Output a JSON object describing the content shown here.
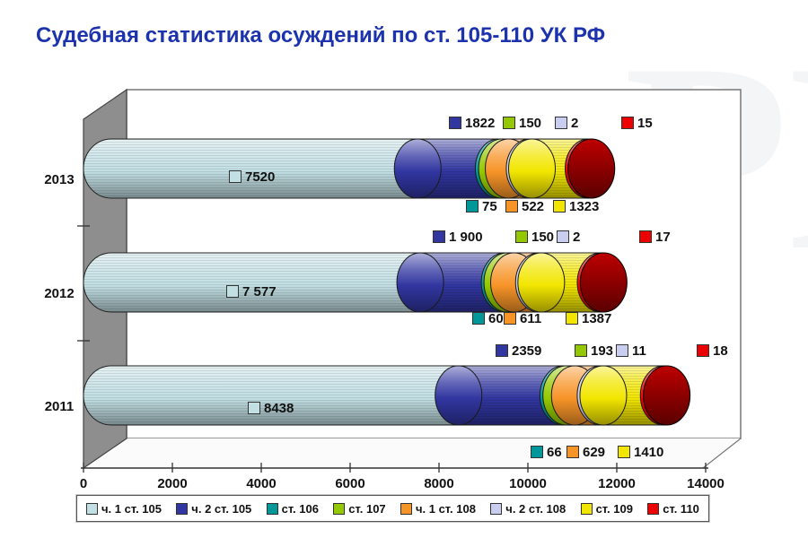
{
  "title": "Судебная статистика осуждений по ст. 105-110 УК РФ",
  "watermark": "РЬ",
  "chart_data": {
    "type": "bar",
    "subtype": "3d-cylinder-stacked-horizontal",
    "categories": [
      "2013",
      "2012",
      "2011"
    ],
    "series": [
      {
        "name": "ч. 1 ст. 105",
        "color": "#c2dfe4",
        "values": [
          7520,
          7577,
          8438
        ],
        "labels": [
          "7520",
          "7 577",
          "8438"
        ]
      },
      {
        "name": "ч. 2 ст. 105",
        "color": "#3136a0",
        "values": [
          1822,
          1900,
          2359
        ],
        "labels": [
          "1822",
          "1 900",
          "2359"
        ]
      },
      {
        "name": "ст. 106",
        "color": "#009798",
        "values": [
          75,
          60,
          66
        ],
        "labels": [
          "75",
          "60",
          "66"
        ]
      },
      {
        "name": "ст. 107",
        "color": "#94c800",
        "values": [
          150,
          150,
          193
        ],
        "labels": [
          "150",
          "150",
          "193"
        ]
      },
      {
        "name": "ч. 1 ст. 108",
        "color": "#f79428",
        "values": [
          522,
          611,
          629
        ],
        "labels": [
          "522",
          "611",
          "629"
        ]
      },
      {
        "name": "ч. 2 ст. 108",
        "color": "#c9cdf0",
        "values": [
          2,
          2,
          11
        ],
        "labels": [
          "2",
          "2",
          "11"
        ]
      },
      {
        "name": "ст. 109",
        "color": "#f2e600",
        "values": [
          1323,
          1387,
          1410
        ],
        "labels": [
          "1323",
          "1387",
          "1410"
        ]
      },
      {
        "name": "ст. 110",
        "color": "#ec0000",
        "values": [
          15,
          17,
          18
        ],
        "labels": [
          "15",
          "17",
          "18"
        ]
      }
    ],
    "x_ticks": [
      0,
      2000,
      4000,
      6000,
      8000,
      10000,
      12000,
      14000
    ],
    "xlim": [
      0,
      14000
    ],
    "xlabel": "",
    "ylabel": "",
    "grid": false,
    "legend_position": "bottom",
    "wall_color": "#8e8e8e",
    "title_color": "#1c33ad"
  }
}
